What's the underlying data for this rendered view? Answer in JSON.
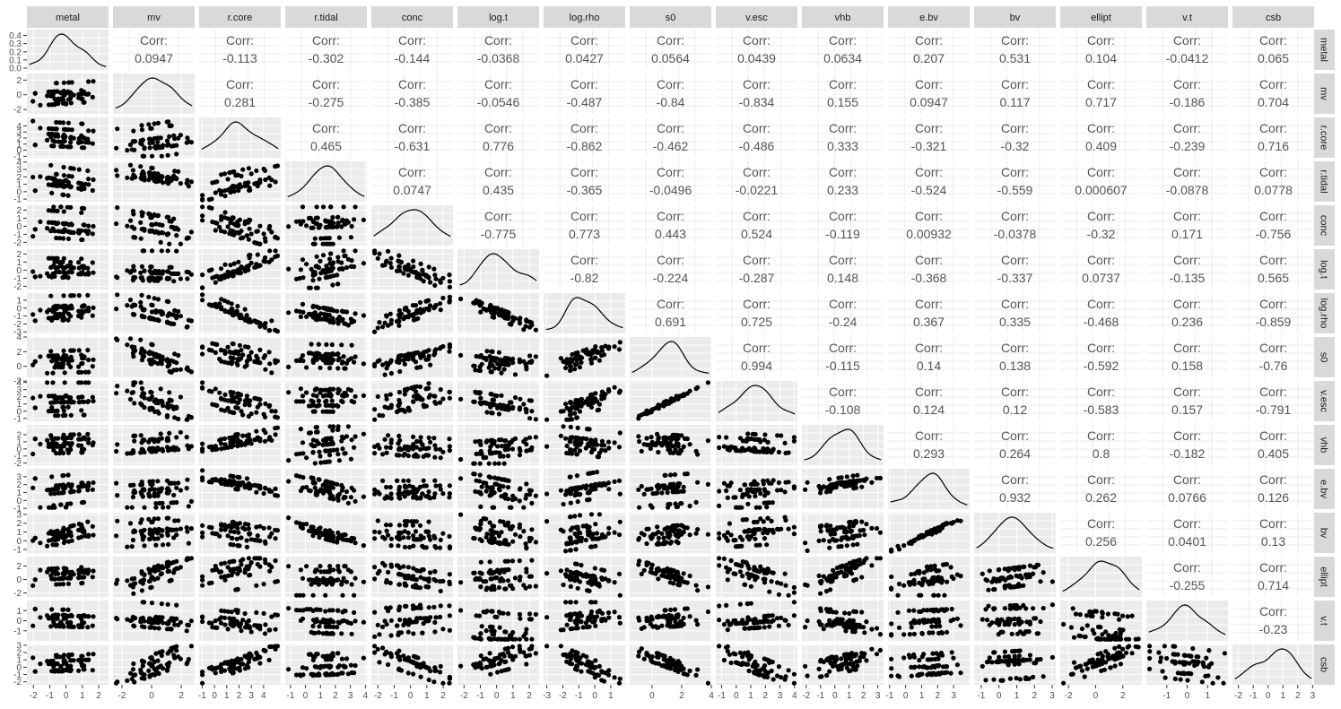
{
  "chart_data": {
    "type": "scatter",
    "variables": [
      "metal",
      "mv",
      "r.core",
      "r.tidal",
      "conc",
      "log.t",
      "log.rho",
      "s0",
      "v.esc",
      "vhb",
      "e.bv",
      "bv",
      "ellipt",
      "v.t",
      "csb"
    ],
    "corr_label": "Corr:",
    "correlations": [
      [
        "",
        "0.0947",
        "-0.113",
        "-0.302",
        "-0.144",
        "-0.0368",
        "0.0427",
        "0.0564",
        "0.0439",
        "0.0634",
        "0.207",
        "0.531",
        "0.104",
        "-0.0412",
        "0.065"
      ],
      [
        "",
        "",
        "0.281",
        "-0.275",
        "-0.385",
        "-0.0546",
        "-0.487",
        "-0.84",
        "-0.834",
        "0.155",
        "0.0947",
        "0.117",
        "0.717",
        "-0.186",
        "0.704"
      ],
      [
        "",
        "",
        "",
        "0.465",
        "-0.631",
        "0.776",
        "-0.862",
        "-0.462",
        "-0.486",
        "0.333",
        "-0.321",
        "-0.32",
        "0.409",
        "-0.239",
        "0.716"
      ],
      [
        "",
        "",
        "",
        "",
        "0.0747",
        "0.435",
        "-0.365",
        "-0.0496",
        "-0.0221",
        "0.233",
        "-0.524",
        "-0.559",
        "0.000607",
        "-0.0878",
        "0.0778"
      ],
      [
        "",
        "",
        "",
        "",
        "",
        "-0.775",
        "0.773",
        "0.443",
        "0.524",
        "-0.119",
        "0.00932",
        "-0.0378",
        "-0.32",
        "0.171",
        "-0.756"
      ],
      [
        "",
        "",
        "",
        "",
        "",
        "",
        "-0.82",
        "-0.224",
        "-0.287",
        "0.148",
        "-0.368",
        "-0.337",
        "0.0737",
        "-0.135",
        "0.565"
      ],
      [
        "",
        "",
        "",
        "",
        "",
        "",
        "",
        "0.691",
        "0.725",
        "-0.24",
        "0.367",
        "0.335",
        "-0.468",
        "0.236",
        "-0.859"
      ],
      [
        "",
        "",
        "",
        "",
        "",
        "",
        "",
        "",
        "0.994",
        "-0.115",
        "0.14",
        "0.138",
        "-0.592",
        "0.158",
        "-0.76"
      ],
      [
        "",
        "",
        "",
        "",
        "",
        "",
        "",
        "",
        "",
        "-0.108",
        "0.124",
        "0.12",
        "-0.583",
        "0.157",
        "-0.791"
      ],
      [
        "",
        "",
        "",
        "",
        "",
        "",
        "",
        "",
        "",
        "",
        "0.293",
        "0.264",
        "0.8",
        "-0.182",
        "0.405"
      ],
      [
        "",
        "",
        "",
        "",
        "",
        "",
        "",
        "",
        "",
        "",
        "",
        "0.932",
        "0.262",
        "0.0766",
        "0.126"
      ],
      [
        "",
        "",
        "",
        "",
        "",
        "",
        "",
        "",
        "",
        "",
        "",
        "",
        "0.256",
        "0.0401",
        "0.13"
      ],
      [
        "",
        "",
        "",
        "",
        "",
        "",
        "",
        "",
        "",
        "",
        "",
        "",
        "",
        "-0.255",
        "0.714"
      ],
      [
        "",
        "",
        "",
        "",
        "",
        "",
        "",
        "",
        "",
        "",
        "",
        "",
        "",
        "",
        "-0.23"
      ],
      [
        "",
        "",
        "",
        "",
        "",
        "",
        "",
        "",
        "",
        "",
        "",
        "",
        "",
        "",
        ""
      ]
    ],
    "x_ranges": [
      [
        -2.4,
        2.6
      ],
      [
        -2.6,
        2.9
      ],
      [
        -1.25,
        5.4
      ],
      [
        -1.35,
        4.1
      ],
      [
        -2.4,
        2.6
      ],
      [
        -2.4,
        2.6
      ],
      [
        -3.2,
        1.9
      ],
      [
        -1.5,
        4.0
      ],
      [
        -1.4,
        4.2
      ],
      [
        -2.3,
        3.4
      ],
      [
        -1.1,
        4.0
      ],
      [
        -1.4,
        3.2
      ],
      [
        -2.6,
        3.4
      ],
      [
        -2.0,
        2.0
      ],
      [
        -2.4,
        3.1
      ]
    ],
    "x_ticks": [
      [
        "-2",
        "-1",
        "0",
        "1",
        "2"
      ],
      [
        "-2",
        "0",
        "2"
      ],
      [
        "-1",
        "0",
        "1",
        "2",
        "3",
        "4"
      ],
      [
        "-1",
        "0",
        "1",
        "2",
        "3",
        "4"
      ],
      [
        "-2",
        "-1",
        "0",
        "1",
        "2"
      ],
      [
        "-2",
        "-1",
        "0",
        "1",
        "2"
      ],
      [
        "-3",
        "-2",
        "-1",
        "0",
        "1"
      ],
      [
        "0",
        "2",
        "4"
      ],
      [
        "-1",
        "0",
        "1",
        "2",
        "3",
        "4"
      ],
      [
        "-2",
        "-1",
        "0",
        "1",
        "2",
        "3"
      ],
      [
        "-1",
        "0",
        "1",
        "2",
        "3"
      ],
      [
        "-1",
        "0",
        "1",
        "2",
        "3"
      ],
      [
        "-2",
        "0",
        "2"
      ],
      [
        "-1",
        "0",
        "1"
      ],
      [
        "-2",
        "-1",
        "0",
        "1",
        "2",
        "3"
      ]
    ],
    "y_ticks": [
      [
        "0.0",
        "0.1",
        "0.2",
        "0.3",
        "0.4"
      ],
      [
        "-2",
        "0",
        "2"
      ],
      [
        "-1",
        "0",
        "1",
        "2",
        "3",
        "4"
      ],
      [
        "-1",
        "0",
        "1",
        "2",
        "3",
        "4"
      ],
      [
        "-2",
        "-1",
        "0",
        "1",
        "2"
      ],
      [
        "-2",
        "-1",
        "0",
        "1",
        "2"
      ],
      [
        "-3",
        "-2",
        "-1",
        "0",
        "1"
      ],
      [
        "-2",
        "0",
        "2",
        "4"
      ],
      [
        "-1",
        "0",
        "1",
        "2",
        "3",
        "4"
      ],
      [
        "-2",
        "-1",
        "0",
        "1",
        "2"
      ],
      [
        "-1",
        "0",
        "1",
        "2",
        "3"
      ],
      [
        "-1",
        "0",
        "1",
        "2",
        "3"
      ],
      [
        "-2",
        "0",
        "2"
      ],
      [
        "-1",
        "0",
        "1"
      ],
      [
        "-2",
        "-1",
        "0",
        "1",
        "2",
        "3"
      ]
    ],
    "colors": {
      "panel": "#ebebeb",
      "grid": "#ffffff",
      "strip": "#d9d9d9",
      "points": "#000000"
    },
    "grid": true
  }
}
